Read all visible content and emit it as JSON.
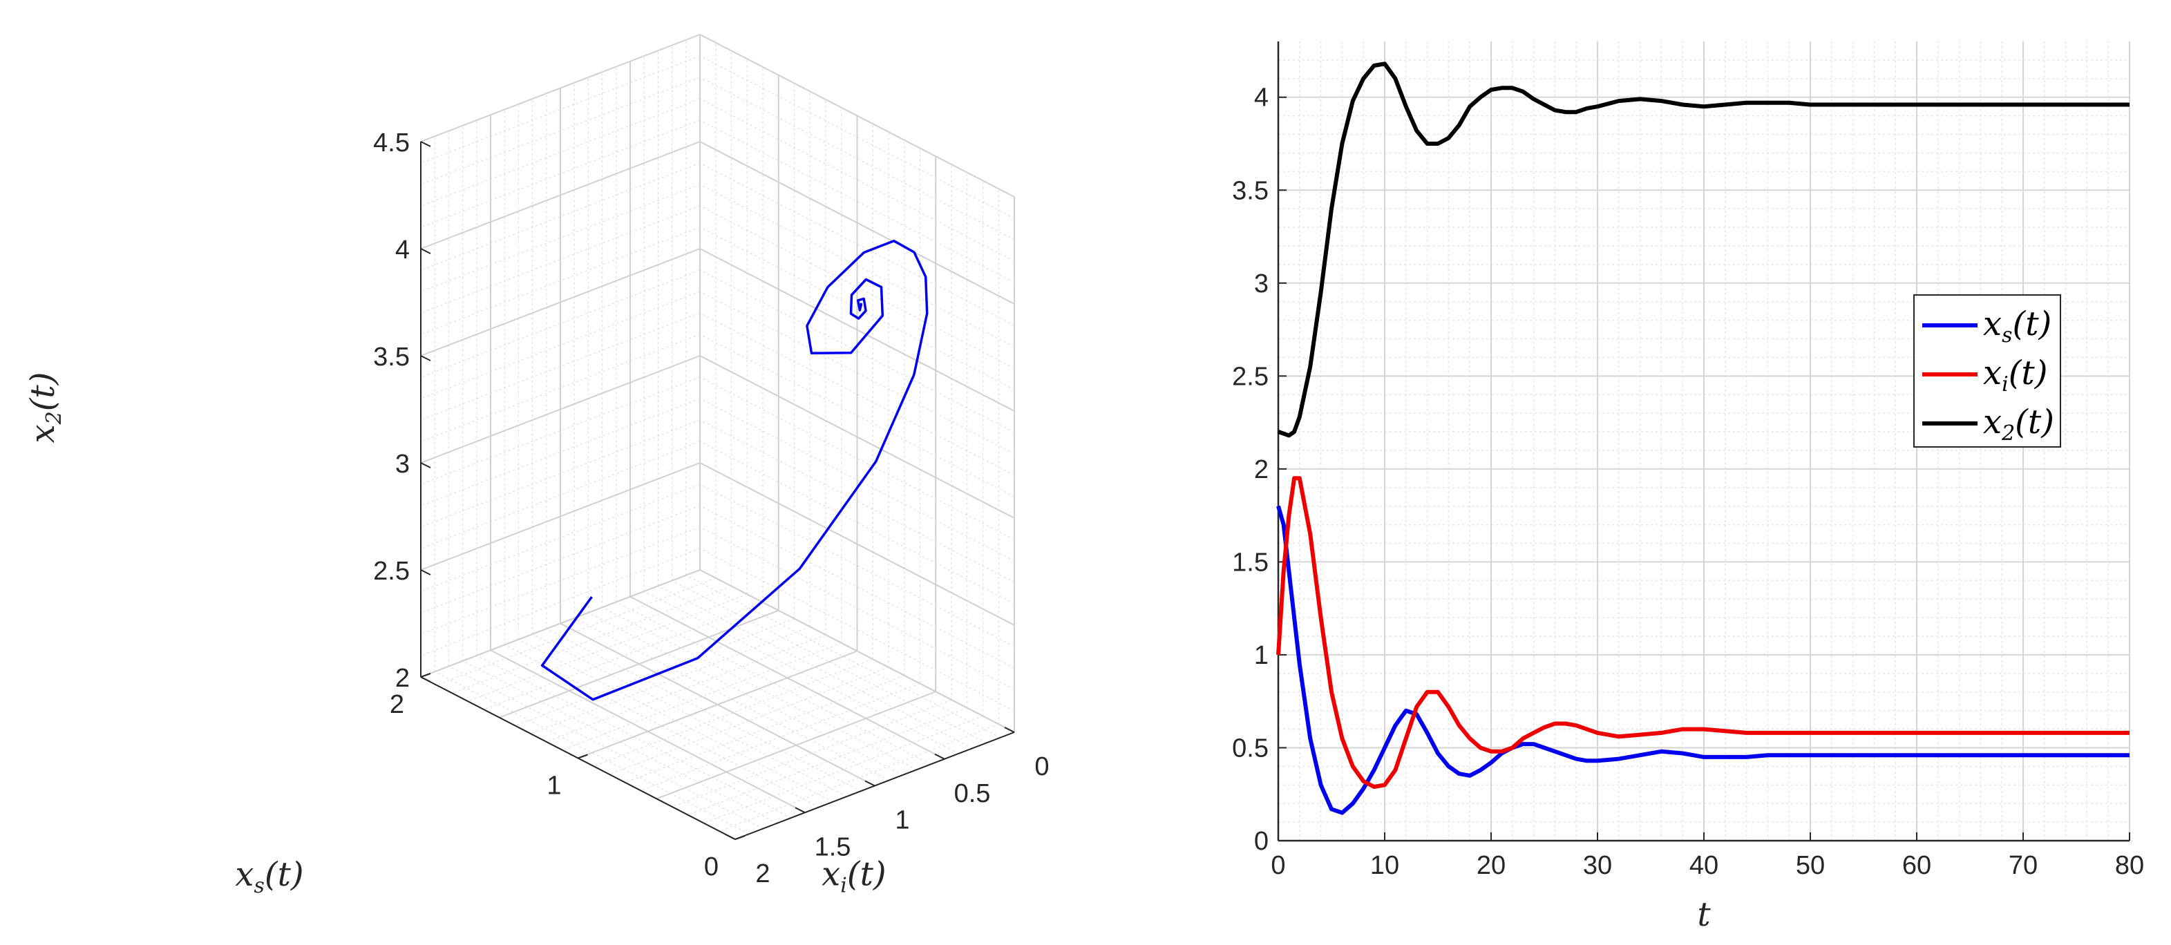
{
  "chart_data": [
    {
      "type": "line3d",
      "view": "3-D phase trajectory",
      "axes": {
        "x": {
          "label_main": "x",
          "label_sub": "i",
          "label_tail": "(t)",
          "range": [
            0,
            2
          ],
          "reversed": true,
          "ticks": [
            "0",
            "0.5",
            "1",
            "1.5",
            "2"
          ]
        },
        "y": {
          "label_main": "x",
          "label_sub": "s",
          "label_tail": "(t)",
          "range": [
            0,
            2
          ],
          "ticks": [
            "0",
            "1",
            "2"
          ]
        },
        "z": {
          "label_main": "x",
          "label_sub": "2",
          "label_tail": "(t)",
          "range": [
            2,
            4.5
          ],
          "ticks": [
            "2",
            "2.5",
            "3",
            "3.5",
            "4",
            "4.5"
          ]
        }
      },
      "grid": true,
      "series": [
        {
          "color": "#0000ee",
          "points": [
            {
              "t": 0,
              "xs": 1.8,
              "xi": 1.0,
              "x2": 2.2
            },
            {
              "t": 1,
              "xs": 1.45,
              "xi": 1.75,
              "x2": 2.2
            },
            {
              "t": 2,
              "xs": 0.95,
              "xi": 1.95,
              "x2": 2.28
            },
            {
              "t": 3,
              "xs": 0.55,
              "xi": 1.65,
              "x2": 2.55
            },
            {
              "t": 4,
              "xs": 0.3,
              "xi": 1.2,
              "x2": 2.95
            },
            {
              "t": 5,
              "xs": 0.17,
              "xi": 0.8,
              "x2": 3.4
            },
            {
              "t": 6,
              "xs": 0.15,
              "xi": 0.55,
              "x2": 3.75
            },
            {
              "t": 7,
              "xs": 0.2,
              "xi": 0.4,
              "x2": 3.98
            },
            {
              "t": 8,
              "xs": 0.28,
              "xi": 0.32,
              "x2": 4.1
            },
            {
              "t": 9,
              "xs": 0.38,
              "xi": 0.29,
              "x2": 4.17
            },
            {
              "t": 10,
              "xs": 0.5,
              "xi": 0.3,
              "x2": 4.18
            },
            {
              "t": 11,
              "xs": 0.62,
              "xi": 0.38,
              "x2": 4.1
            },
            {
              "t": 12,
              "xs": 0.7,
              "xi": 0.55,
              "x2": 3.95
            },
            {
              "t": 13,
              "xs": 0.68,
              "xi": 0.72,
              "x2": 3.82
            },
            {
              "t": 14,
              "xs": 0.58,
              "xi": 0.8,
              "x2": 3.75
            },
            {
              "t": 16,
              "xs": 0.4,
              "xi": 0.72,
              "x2": 3.8
            },
            {
              "t": 18,
              "xs": 0.35,
              "xi": 0.55,
              "x2": 3.95
            },
            {
              "t": 20,
              "xs": 0.42,
              "xi": 0.48,
              "x2": 4.04
            },
            {
              "t": 22,
              "xs": 0.5,
              "xi": 0.5,
              "x2": 4.05
            },
            {
              "t": 24,
              "xs": 0.52,
              "xi": 0.58,
              "x2": 3.99
            },
            {
              "t": 26,
              "xs": 0.48,
              "xi": 0.63,
              "x2": 3.93
            },
            {
              "t": 28,
              "xs": 0.44,
              "xi": 0.62,
              "x2": 3.92
            },
            {
              "t": 30,
              "xs": 0.43,
              "xi": 0.58,
              "x2": 3.95
            },
            {
              "t": 33,
              "xs": 0.46,
              "xi": 0.56,
              "x2": 3.99
            },
            {
              "t": 36,
              "xs": 0.48,
              "xi": 0.58,
              "x2": 3.98
            },
            {
              "t": 40,
              "xs": 0.45,
              "xi": 0.6,
              "x2": 3.95
            },
            {
              "t": 45,
              "xs": 0.46,
              "xi": 0.58,
              "x2": 3.97
            },
            {
              "t": 50,
              "xs": 0.46,
              "xi": 0.58,
              "x2": 3.96
            },
            {
              "t": 60,
              "xs": 0.46,
              "xi": 0.58,
              "x2": 3.96
            },
            {
              "t": 80,
              "xs": 0.46,
              "xi": 0.58,
              "x2": 3.96
            }
          ]
        }
      ]
    },
    {
      "type": "line",
      "xlabel": "t",
      "xlim": [
        0,
        80
      ],
      "ylim": [
        0,
        4.3
      ],
      "xticks": [
        "0",
        "10",
        "20",
        "30",
        "40",
        "50",
        "60",
        "70",
        "80"
      ],
      "yticks": [
        "0",
        "0.5",
        "1",
        "1.5",
        "2",
        "2.5",
        "3",
        "3.5",
        "4"
      ],
      "grid": true,
      "legend_placement": "right",
      "series": [
        {
          "legend_main": "x",
          "legend_sub": "s",
          "legend_tail": "(t)",
          "color": "#0000ee",
          "x": [
            0,
            0.5,
            1,
            1.5,
            2,
            3,
            4,
            5,
            6,
            7,
            8,
            9,
            10,
            11,
            12,
            13,
            14,
            15,
            16,
            17,
            18,
            19,
            20,
            21,
            22,
            23,
            24,
            25,
            26,
            27,
            28,
            29,
            30,
            32,
            34,
            36,
            38,
            40,
            42,
            44,
            46,
            48,
            50,
            55,
            60,
            65,
            70,
            75,
            80
          ],
          "y": [
            1.8,
            1.7,
            1.45,
            1.2,
            0.95,
            0.55,
            0.3,
            0.17,
            0.15,
            0.2,
            0.28,
            0.38,
            0.5,
            0.62,
            0.7,
            0.68,
            0.58,
            0.47,
            0.4,
            0.36,
            0.35,
            0.38,
            0.42,
            0.47,
            0.5,
            0.52,
            0.52,
            0.5,
            0.48,
            0.46,
            0.44,
            0.43,
            0.43,
            0.44,
            0.46,
            0.48,
            0.47,
            0.45,
            0.45,
            0.45,
            0.46,
            0.46,
            0.46,
            0.46,
            0.46,
            0.46,
            0.46,
            0.46,
            0.46
          ]
        },
        {
          "legend_main": "x",
          "legend_sub": "i",
          "legend_tail": "(t)",
          "color": "#ee0000",
          "x": [
            0,
            0.5,
            1,
            1.5,
            2,
            3,
            4,
            5,
            6,
            7,
            8,
            9,
            10,
            11,
            12,
            13,
            14,
            15,
            16,
            17,
            18,
            19,
            20,
            21,
            22,
            23,
            24,
            25,
            26,
            27,
            28,
            29,
            30,
            32,
            34,
            36,
            38,
            40,
            42,
            44,
            46,
            48,
            50,
            55,
            60,
            65,
            70,
            75,
            80
          ],
          "y": [
            1.0,
            1.45,
            1.75,
            1.95,
            1.95,
            1.65,
            1.2,
            0.8,
            0.55,
            0.4,
            0.32,
            0.29,
            0.3,
            0.38,
            0.55,
            0.72,
            0.8,
            0.8,
            0.72,
            0.62,
            0.55,
            0.5,
            0.48,
            0.48,
            0.5,
            0.55,
            0.58,
            0.61,
            0.63,
            0.63,
            0.62,
            0.6,
            0.58,
            0.56,
            0.57,
            0.58,
            0.6,
            0.6,
            0.59,
            0.58,
            0.58,
            0.58,
            0.58,
            0.58,
            0.58,
            0.58,
            0.58,
            0.58,
            0.58
          ]
        },
        {
          "legend_main": "x",
          "legend_sub": "2",
          "legend_tail": "(t)",
          "color": "#000000",
          "x": [
            0,
            0.5,
            1,
            1.5,
            2,
            3,
            4,
            5,
            6,
            7,
            8,
            9,
            10,
            11,
            12,
            13,
            14,
            15,
            16,
            17,
            18,
            19,
            20,
            21,
            22,
            23,
            24,
            25,
            26,
            27,
            28,
            29,
            30,
            32,
            34,
            36,
            38,
            40,
            42,
            44,
            46,
            48,
            50,
            55,
            60,
            65,
            70,
            75,
            80
          ],
          "y": [
            2.2,
            2.19,
            2.18,
            2.2,
            2.28,
            2.55,
            2.95,
            3.4,
            3.75,
            3.98,
            4.1,
            4.17,
            4.18,
            4.1,
            3.95,
            3.82,
            3.75,
            3.75,
            3.78,
            3.85,
            3.95,
            4.0,
            4.04,
            4.05,
            4.05,
            4.03,
            3.99,
            3.96,
            3.93,
            3.92,
            3.92,
            3.94,
            3.95,
            3.98,
            3.99,
            3.98,
            3.96,
            3.95,
            3.96,
            3.97,
            3.97,
            3.97,
            3.96,
            3.96,
            3.96,
            3.96,
            3.96,
            3.96,
            3.96
          ]
        }
      ]
    }
  ]
}
